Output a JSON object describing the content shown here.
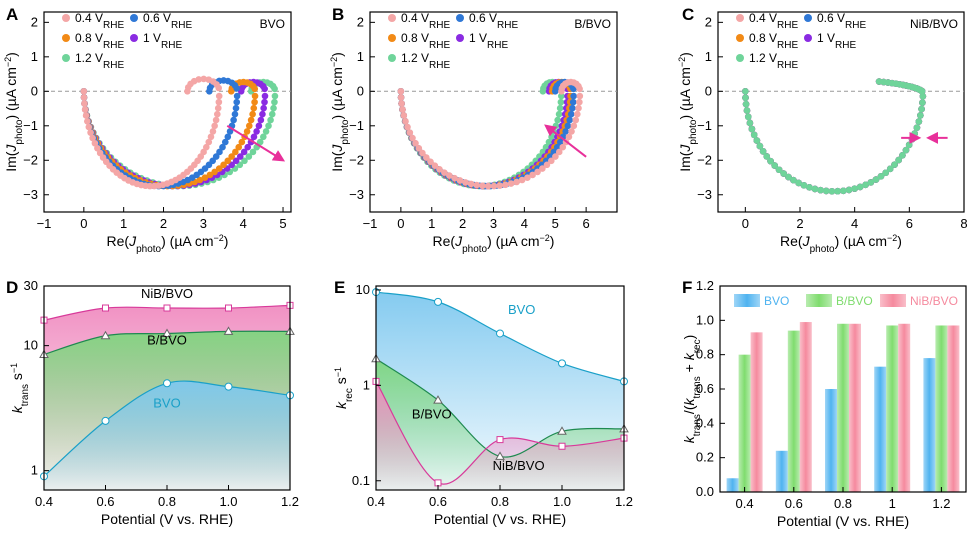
{
  "figure": {
    "colors": {
      "v04": "#f4a6a6",
      "v06": "#2f78d6",
      "v08": "#f28a16",
      "v1": "#8a2be2",
      "v12": "#6fd49a",
      "arrow": "#e8309a",
      "bvo_fill": "#7ec8ef",
      "bbvo_fill": "#7fd67f",
      "nib_fill": "#f08cc0",
      "bar_bvo": "#4fb3f0",
      "bar_bbvo": "#7fdc6e",
      "bar_nib": "#f58a9e"
    }
  },
  "chart_data": [
    {
      "panel": "A",
      "type": "scatter",
      "title": "BVO",
      "xlabel": "Re(J_photo) (µA cm⁻²)",
      "ylabel": "Im(J_photo) (µA cm⁻²)",
      "xlim": [
        -1,
        5.2
      ],
      "ylim": [
        -3.5,
        2.3
      ],
      "xticks": [
        "−1",
        "0",
        "1",
        "2",
        "3",
        "4",
        "5"
      ],
      "yticks": [
        "−3",
        "−2",
        "−1",
        "0",
        "1",
        "2"
      ],
      "x_tick_values": [
        -1,
        0,
        1,
        2,
        3,
        4,
        5
      ],
      "y_tick_values": [
        -3,
        -2,
        -1,
        0,
        1,
        2
      ],
      "series": [
        {
          "name": "0.4 V",
          "color_key": "v04",
          "params": {
            "R": 3.4,
            "r": 0.4,
            "t0": 2.75
          }
        },
        {
          "name": "0.6 V",
          "color_key": "v06",
          "params": {
            "R": 3.85,
            "r": 0.35,
            "t0": 2.75
          }
        },
        {
          "name": "0.8 V",
          "color_key": "v08",
          "params": {
            "R": 4.3,
            "r": 0.3,
            "t0": 2.75
          }
        },
        {
          "name": "1 V",
          "color_key": "v1",
          "params": {
            "R": 4.55,
            "r": 0.3,
            "t0": 2.75
          }
        },
        {
          "name": "1.2 V",
          "color_key": "v12",
          "params": {
            "R": 4.8,
            "r": 0.3,
            "t0": 2.75
          }
        }
      ],
      "legend_labels": [
        "0.4 V_RHE",
        "0.6 V_RHE",
        "0.8 V_RHE",
        "1 V_RHE",
        "1.2 V_RHE"
      ],
      "arrow": {
        "from": [
          3.6,
          -1.0
        ],
        "to": [
          5.0,
          -2.0
        ]
      }
    },
    {
      "panel": "B",
      "type": "scatter",
      "title": "B/BVO",
      "xlabel": "Re(J_photo) (µA cm⁻²)",
      "ylabel": "Im(J_photo) (µA cm⁻²)",
      "xlim": [
        -1,
        7
      ],
      "ylim": [
        -3.5,
        2.3
      ],
      "xticks": [
        "−1",
        "0",
        "1",
        "2",
        "3",
        "4",
        "5",
        "6"
      ],
      "yticks": [
        "−3",
        "−2",
        "−1",
        "0",
        "1",
        "2"
      ],
      "x_tick_values": [
        -1,
        0,
        1,
        2,
        3,
        4,
        5,
        6
      ],
      "y_tick_values": [
        -3,
        -2,
        -1,
        0,
        1,
        2
      ],
      "series": [
        {
          "name": "0.4 V",
          "color_key": "v04",
          "params": {
            "R": 5.8,
            "r": 0.3,
            "t0": 2.75
          }
        },
        {
          "name": "0.6 V",
          "color_key": "v06",
          "params": {
            "R": 5.6,
            "r": 0.3,
            "t0": 2.75
          }
        },
        {
          "name": "0.8 V",
          "color_key": "v08",
          "params": {
            "R": 5.5,
            "r": 0.3,
            "t0": 2.75
          }
        },
        {
          "name": "1 V",
          "color_key": "v1",
          "params": {
            "R": 5.4,
            "r": 0.3,
            "t0": 2.75
          }
        },
        {
          "name": "1.2 V",
          "color_key": "v12",
          "params": {
            "R": 5.2,
            "r": 0.3,
            "t0": 2.75
          }
        }
      ],
      "legend_labels": [
        "0.4 V_RHE",
        "0.6 V_RHE",
        "0.8 V_RHE",
        "1 V_RHE",
        "1.2 V_RHE"
      ],
      "arrow": {
        "from": [
          6.0,
          -1.9
        ],
        "to": [
          4.7,
          -1.0
        ]
      }
    },
    {
      "panel": "C",
      "type": "scatter",
      "title": "NiB/BVO",
      "xlabel": "Re(J_photo) (µA cm⁻²)",
      "ylabel": "Im(J_photo) (µA cm⁻²)",
      "xlim": [
        -1,
        8
      ],
      "ylim": [
        -3.5,
        2.3
      ],
      "xticks": [
        "0",
        "2",
        "4",
        "6",
        "8"
      ],
      "yticks": [
        "−3",
        "−2",
        "−1",
        "0",
        "1",
        "2"
      ],
      "x_tick_values": [
        0,
        2,
        4,
        6,
        8
      ],
      "y_tick_values": [
        -3,
        -2,
        -1,
        0,
        1,
        2
      ],
      "series": [
        {
          "name": "0.4 V",
          "color_key": "v04",
          "params": {
            "R": 6.5,
            "r": 0.0,
            "t0": 2.9
          }
        },
        {
          "name": "0.6 V",
          "color_key": "v06",
          "params": {
            "R": 6.5,
            "r": 0.0,
            "t0": 2.9
          }
        },
        {
          "name": "0.8 V",
          "color_key": "v08",
          "params": {
            "R": 6.5,
            "r": 0.0,
            "t0": 2.9
          }
        },
        {
          "name": "1 V",
          "color_key": "v1",
          "params": {
            "R": 6.5,
            "r": 0.0,
            "t0": 2.9
          }
        },
        {
          "name": "1.2 V",
          "color_key": "v12",
          "params": {
            "R": 6.5,
            "r": 0.0,
            "t0": 2.9
          }
        }
      ],
      "legend_labels": [
        "0.4 V_RHE",
        "0.6 V_RHE",
        "0.8 V_RHE",
        "1 V_RHE",
        "1.2 V_RHE"
      ],
      "arrows": [
        {
          "from": [
            5.7,
            -1.35
          ],
          "to": [
            6.35,
            -1.35
          ]
        },
        {
          "from": [
            7.4,
            -1.35
          ],
          "to": [
            6.7,
            -1.35
          ]
        }
      ]
    },
    {
      "panel": "D",
      "type": "area",
      "scale": "log",
      "xlabel": "Potential (V vs. RHE)",
      "ylabel": "k_trans s⁻¹",
      "xlim": [
        0.4,
        1.2
      ],
      "ylim": [
        0.7,
        30
      ],
      "xticks": [
        "0.4",
        "0.6",
        "0.8",
        "1.0",
        "1.2"
      ],
      "x_tick_values": [
        0.4,
        0.6,
        0.8,
        1.0,
        1.2
      ],
      "yticks": [
        "1",
        "10",
        "30"
      ],
      "y_tick_values": [
        1,
        10,
        30
      ],
      "x": [
        0.4,
        0.6,
        0.8,
        1.0,
        1.2
      ],
      "series": [
        {
          "name": "NiB/BVO",
          "color_key": "nib_fill",
          "values": [
            16,
            20,
            20,
            20,
            21
          ],
          "marker": "square"
        },
        {
          "name": "B/BVO",
          "color_key": "bbvo_fill",
          "values": [
            8.5,
            12,
            12.5,
            13,
            13
          ],
          "marker": "triangle"
        },
        {
          "name": "BVO",
          "color_key": "bvo_fill",
          "values": [
            0.9,
            2.5,
            5.0,
            4.7,
            4.0
          ],
          "marker": "circle"
        }
      ],
      "labels": [
        "NiB/BVO",
        "B/BVO",
        "BVO"
      ]
    },
    {
      "panel": "E",
      "type": "area",
      "scale": "log",
      "xlabel": "Potential (V vs. RHE)",
      "ylabel": "k_rec s⁻¹",
      "xlim": [
        0.4,
        1.2
      ],
      "ylim": [
        0.08,
        11
      ],
      "xticks": [
        "0.4",
        "0.6",
        "0.8",
        "1.0",
        "1.2"
      ],
      "x_tick_values": [
        0.4,
        0.6,
        0.8,
        1.0,
        1.2
      ],
      "yticks": [
        "0.1",
        "1",
        "10"
      ],
      "y_tick_values": [
        0.1,
        1,
        10
      ],
      "x": [
        0.4,
        0.6,
        0.8,
        1.0,
        1.2
      ],
      "series": [
        {
          "name": "BVO",
          "color_key": "bvo_fill",
          "values": [
            9.5,
            7.5,
            3.5,
            1.7,
            1.1
          ],
          "marker": "circle"
        },
        {
          "name": "B/BVO",
          "color_key": "bbvo_fill",
          "values": [
            1.9,
            0.7,
            0.18,
            0.33,
            0.35
          ],
          "marker": "triangle"
        },
        {
          "name": "NiB/BVO",
          "color_key": "nib_fill",
          "values": [
            1.1,
            0.095,
            0.27,
            0.23,
            0.28
          ],
          "marker": "square"
        }
      ],
      "labels": [
        "BVO",
        "B/BVO",
        "NiB/BVO"
      ]
    },
    {
      "panel": "F",
      "type": "bar",
      "xlabel": "Potential (V vs. RHE)",
      "ylabel": "k_trans/(k_trans + k_rec)",
      "ylim": [
        0,
        1.2
      ],
      "yticks": [
        "0.0",
        "0.2",
        "0.4",
        "0.6",
        "0.8",
        "1.0",
        "1.2"
      ],
      "y_tick_values": [
        0,
        0.2,
        0.4,
        0.6,
        0.8,
        1.0,
        1.2
      ],
      "categories": [
        "0.4",
        "0.6",
        "0.8",
        "1",
        "1.2"
      ],
      "series": [
        {
          "name": "BVO",
          "color_key": "bar_bvo",
          "values": [
            0.08,
            0.24,
            0.6,
            0.73,
            0.78
          ]
        },
        {
          "name": "B/BVO",
          "color_key": "bar_bbvo",
          "values": [
            0.8,
            0.94,
            0.98,
            0.97,
            0.97
          ]
        },
        {
          "name": "NiB/BVO",
          "color_key": "bar_nib",
          "values": [
            0.93,
            0.99,
            0.98,
            0.98,
            0.97
          ]
        }
      ]
    }
  ]
}
